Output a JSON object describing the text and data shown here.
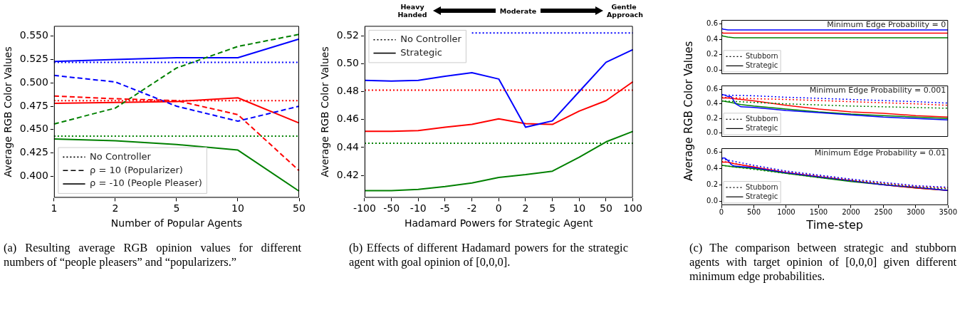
{
  "chart_data": [
    {
      "type": "line",
      "xlabel": "Number of Popular Agents",
      "ylabel": "Average RGB Color Values",
      "categories": [
        "1",
        "2",
        "5",
        "10",
        "50"
      ],
      "ylim": [
        0.377,
        0.561
      ],
      "yticks": [
        {
          "value": 0.4,
          "label": "0.400"
        },
        {
          "value": 0.425,
          "label": "0.425"
        },
        {
          "value": 0.45,
          "label": "0.450"
        },
        {
          "value": 0.475,
          "label": "0.475"
        },
        {
          "value": 0.5,
          "label": "0.500"
        },
        {
          "value": 0.525,
          "label": "0.525"
        },
        {
          "value": 0.55,
          "label": "0.550"
        }
      ],
      "legend": "lower left",
      "annotations": [
        "(a) Resulting average RGB opinion values for different numbers of “people pleasers” and “popularizers.”"
      ],
      "series": [
        {
          "color": "#0000ff",
          "line_style": "dotted",
          "values": [
            0.522,
            0.522,
            0.522,
            0.522,
            0.522
          ]
        },
        {
          "color": "#ff0000",
          "line_style": "dotted",
          "values": [
            0.481,
            0.481,
            0.481,
            0.481,
            0.481
          ]
        },
        {
          "color": "#008000",
          "line_style": "dotted",
          "values": [
            0.443,
            0.443,
            0.443,
            0.443,
            0.443
          ]
        },
        {
          "color": "#0000ff",
          "line_style": "dashed",
          "values": [
            0.508,
            0.501,
            0.475,
            0.459,
            0.475
          ]
        },
        {
          "color": "#ff0000",
          "line_style": "dashed",
          "values": [
            0.486,
            0.483,
            0.481,
            0.466,
            0.406
          ]
        },
        {
          "color": "#008000",
          "line_style": "dashed",
          "values": [
            0.456,
            0.473,
            0.516,
            0.539,
            0.552
          ]
        },
        {
          "color": "#0000ff",
          "line_style": "solid",
          "values": [
            0.523,
            0.525,
            0.527,
            0.527,
            0.547
          ]
        },
        {
          "color": "#ff0000",
          "line_style": "solid",
          "values": [
            0.478,
            0.479,
            0.48,
            0.484,
            0.457
          ]
        },
        {
          "color": "#008000",
          "line_style": "solid",
          "values": [
            0.44,
            0.438,
            0.434,
            0.428,
            0.384
          ]
        },
        {
          "name": "No Controller",
          "color": "#000000",
          "line_style": "dotted",
          "values": [
            null,
            null,
            null,
            null,
            null
          ]
        },
        {
          "name": "ρ = 10 (Popularizer)",
          "color": "#000000",
          "line_style": "dashed",
          "values": [
            null,
            null,
            null,
            null,
            null
          ]
        },
        {
          "name": "ρ = -10 (People Pleaser)",
          "color": "#000000",
          "line_style": "solid",
          "values": [
            null,
            null,
            null,
            null,
            null
          ]
        }
      ]
    },
    {
      "type": "line",
      "xlabel": "Hadamard Powers for Strategic Agent",
      "ylabel": "Average RGB Color Values",
      "categories": [
        "-100",
        "-50",
        "-10",
        "-5",
        "-2",
        "0",
        "2",
        "5",
        "10",
        "50",
        "100"
      ],
      "ylim": [
        0.404,
        0.527
      ],
      "yticks": [
        0.42,
        0.44,
        0.46,
        0.48,
        {
          "value": 0.5,
          "label": "0.50"
        },
        0.52
      ],
      "legend": "upper left",
      "annotations": [
        "Heavy Handed",
        "Moderate",
        "Gentle Approach",
        "(b) Effects of different Hadamard powers for the strategic agent with goal opinion of [0,0,0]."
      ],
      "series": [
        {
          "color": "#0000ff",
          "line_style": "dotted",
          "values": [
            null,
            null,
            null,
            null,
            0.522,
            0.522,
            0.522,
            0.522,
            0.522,
            0.522,
            0.522
          ]
        },
        {
          "color": "#ff0000",
          "line_style": "dotted",
          "values": [
            0.481,
            0.481,
            0.481,
            0.481,
            0.481,
            0.481,
            0.481,
            0.481,
            0.481,
            0.481,
            0.481
          ]
        },
        {
          "color": "#008000",
          "line_style": "dotted",
          "values": [
            0.443,
            0.443,
            0.443,
            0.443,
            0.443,
            0.443,
            0.443,
            0.443,
            0.443,
            0.443,
            0.443
          ]
        },
        {
          "color": "#0000ff",
          "line_style": "solid",
          "values": [
            0.488,
            0.4875,
            0.488,
            0.491,
            0.4935,
            0.489,
            0.4545,
            0.459,
            0.48,
            0.501,
            0.51
          ]
        },
        {
          "color": "#ff0000",
          "line_style": "solid",
          "values": [
            0.4515,
            0.4515,
            0.452,
            0.4545,
            0.4565,
            0.4605,
            0.457,
            0.4565,
            0.466,
            0.4735,
            0.487
          ]
        },
        {
          "color": "#008000",
          "line_style": "solid",
          "values": [
            0.409,
            0.409,
            0.41,
            0.412,
            0.4145,
            0.4185,
            0.4205,
            0.423,
            0.433,
            0.444,
            0.4515
          ]
        },
        {
          "name": "No Controller",
          "color": "#000000",
          "line_style": "dotted",
          "values": [
            null,
            null,
            null,
            null,
            null,
            null,
            null,
            null,
            null,
            null,
            null
          ]
        },
        {
          "name": "Strategic",
          "color": "#000000",
          "line_style": "solid",
          "values": [
            null,
            null,
            null,
            null,
            null,
            null,
            null,
            null,
            null,
            null,
            null
          ]
        }
      ]
    },
    {
      "type": "line",
      "title": "Minimum Edge Probability = 0",
      "xlim": [
        0,
        3500
      ],
      "xticks": [
        0,
        500,
        1000,
        1500,
        2000,
        2500,
        3000,
        3500
      ],
      "ylim": [
        -0.05,
        0.65
      ],
      "yticks": [
        {
          "value": 0,
          "label": "0.0"
        },
        0.2,
        0.4,
        0.6
      ],
      "tick_labels": "y",
      "legend": "lower left",
      "series": [
        {
          "color": "#0000ff",
          "line_style": "solid",
          "x": [
            0,
            30,
            100,
            300,
            1000,
            2000,
            3500
          ],
          "values": [
            0.54,
            0.53,
            0.52,
            0.52,
            0.52,
            0.52,
            0.52
          ]
        },
        {
          "color": "#ff0000",
          "line_style": "solid",
          "x": [
            0,
            30,
            100,
            300,
            1000,
            2000,
            3500
          ],
          "values": [
            0.49,
            0.48,
            0.48,
            0.48,
            0.48,
            0.48,
            0.48
          ]
        },
        {
          "color": "#008000",
          "line_style": "solid",
          "x": [
            0,
            30,
            100,
            200,
            500,
            1000,
            2000,
            3500
          ],
          "values": [
            0.45,
            0.44,
            0.43,
            0.42,
            0.42,
            0.42,
            0.42,
            0.42
          ]
        },
        {
          "name": "Stubborn",
          "color": "#000000",
          "line_style": "dotted"
        },
        {
          "name": "Strategic",
          "color": "#000000",
          "line_style": "solid"
        }
      ]
    },
    {
      "type": "line",
      "title": "Minimum Edge Probability = 0.001",
      "ylabel": "Average RGB Color Values",
      "xlim": [
        0,
        3500
      ],
      "xticks": [
        0,
        500,
        1000,
        1500,
        2000,
        2500,
        3000,
        3500
      ],
      "ylim": [
        -0.05,
        0.65
      ],
      "yticks": [
        {
          "value": 0,
          "label": "0.0"
        },
        0.2,
        0.4,
        0.6
      ],
      "tick_labels": "y",
      "legend": "lower left",
      "series": [
        {
          "color": "#0000ff",
          "line_style": "dotted",
          "x": [
            0,
            500,
            1000,
            2000,
            3000,
            3500
          ],
          "values": [
            0.52,
            0.51,
            0.49,
            0.46,
            0.43,
            0.41
          ]
        },
        {
          "color": "#ff0000",
          "line_style": "dotted",
          "x": [
            0,
            500,
            1000,
            2000,
            3000,
            3500
          ],
          "values": [
            0.49,
            0.47,
            0.46,
            0.43,
            0.4,
            0.38
          ]
        },
        {
          "color": "#008000",
          "line_style": "dotted",
          "x": [
            0,
            500,
            1000,
            2000,
            3000,
            3500
          ],
          "values": [
            0.44,
            0.42,
            0.4,
            0.37,
            0.35,
            0.34
          ]
        },
        {
          "color": "#0000ff",
          "line_style": "solid",
          "x": [
            0,
            50,
            100,
            150,
            220,
            300,
            500,
            1000,
            1500,
            2000,
            2500,
            3000,
            3500
          ],
          "values": [
            0.53,
            0.52,
            0.5,
            0.5,
            0.4,
            0.36,
            0.35,
            0.31,
            0.28,
            0.25,
            0.22,
            0.2,
            0.18
          ]
        },
        {
          "color": "#ff0000",
          "line_style": "solid",
          "x": [
            0,
            100,
            200,
            500,
            1000,
            1500,
            2000,
            2500,
            3000,
            3500
          ],
          "values": [
            0.48,
            0.48,
            0.47,
            0.44,
            0.38,
            0.33,
            0.29,
            0.27,
            0.24,
            0.22
          ]
        },
        {
          "color": "#008000",
          "line_style": "solid",
          "x": [
            0,
            150,
            300,
            500,
            1000,
            1500,
            2000,
            2500,
            3000,
            3500
          ],
          "values": [
            0.44,
            0.42,
            0.39,
            0.37,
            0.33,
            0.29,
            0.26,
            0.24,
            0.22,
            0.2
          ]
        },
        {
          "name": "Stubborn",
          "color": "#000000",
          "line_style": "dotted"
        },
        {
          "name": "Strategic",
          "color": "#000000",
          "line_style": "solid"
        }
      ]
    },
    {
      "type": "line",
      "title": "Minimum Edge Probability = 0.01",
      "xlabel": "Time-step",
      "xlim": [
        0,
        3500
      ],
      "xticks": [
        0,
        500,
        1000,
        1500,
        2000,
        2500,
        3000,
        3500
      ],
      "ylim": [
        -0.05,
        0.65
      ],
      "yticks": [
        {
          "value": 0,
          "label": "0.0"
        },
        0.2,
        0.4,
        0.6
      ],
      "legend": "lower left",
      "annotations": [
        "(c) The comparison between strategic and stubborn agents with target opinion of [0,0,0] given different minimum edge probabilities."
      ],
      "series": [
        {
          "color": "#0000ff",
          "line_style": "dotted",
          "x": [
            0,
            500,
            1000,
            1500,
            2000,
            2500,
            3000,
            3500
          ],
          "values": [
            0.52,
            0.44,
            0.37,
            0.32,
            0.27,
            0.23,
            0.19,
            0.17
          ]
        },
        {
          "color": "#ff0000",
          "line_style": "dotted",
          "x": [
            0,
            500,
            1000,
            1500,
            2000,
            2500,
            3000,
            3500
          ],
          "values": [
            0.49,
            0.42,
            0.36,
            0.31,
            0.26,
            0.22,
            0.18,
            0.16
          ]
        },
        {
          "color": "#008000",
          "line_style": "dotted",
          "x": [
            0,
            500,
            1000,
            1500,
            2000,
            2500,
            3000,
            3500
          ],
          "values": [
            0.44,
            0.39,
            0.34,
            0.29,
            0.25,
            0.21,
            0.17,
            0.15
          ]
        },
        {
          "color": "#0000ff",
          "line_style": "solid",
          "x": [
            0,
            50,
            100,
            150,
            200,
            500,
            1000,
            1500,
            2000,
            2500,
            3000,
            3500
          ],
          "values": [
            0.53,
            0.53,
            0.5,
            0.45,
            0.43,
            0.41,
            0.35,
            0.3,
            0.25,
            0.2,
            0.17,
            0.13
          ]
        },
        {
          "color": "#ff0000",
          "line_style": "solid",
          "x": [
            0,
            100,
            200,
            500,
            1000,
            1500,
            2000,
            2500,
            3000,
            3500
          ],
          "values": [
            0.48,
            0.48,
            0.46,
            0.42,
            0.35,
            0.3,
            0.25,
            0.2,
            0.16,
            0.13
          ]
        },
        {
          "color": "#008000",
          "line_style": "solid",
          "x": [
            0,
            200,
            500,
            1000,
            1500,
            2000,
            2500,
            3000,
            3500
          ],
          "values": [
            0.44,
            0.42,
            0.4,
            0.34,
            0.29,
            0.24,
            0.2,
            0.16,
            0.13
          ]
        },
        {
          "name": "Stubborn",
          "color": "#000000",
          "line_style": "dotted"
        },
        {
          "name": "Strategic",
          "color": "#000000",
          "line_style": "solid"
        }
      ]
    }
  ]
}
